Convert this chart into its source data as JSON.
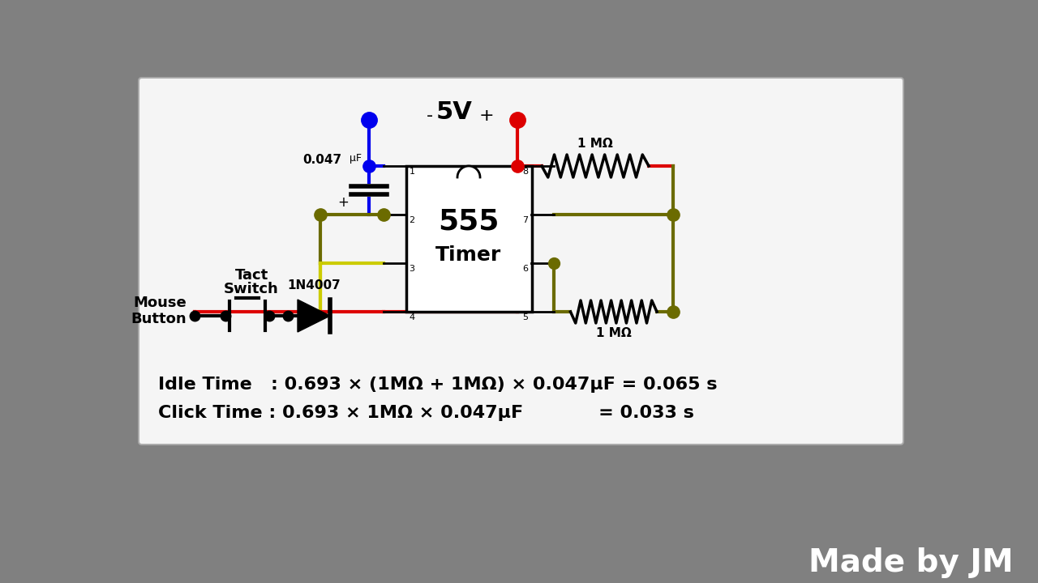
{
  "blue_color": "#0000ee",
  "red_color": "#dd0000",
  "olive_color": "#6b6b00",
  "yellow_color": "#cccc00",
  "black_color": "#000000",
  "white_color": "#ffffff",
  "bg_color": "#888888",
  "formula_idle": "Idle Time   : 0.693 × (1MΩ + 1MΩ) × 0.047μF = 0.065 s",
  "formula_click": "Click Time : 0.693 × 1MΩ × 0.047μF            = 0.033 s",
  "watermark": "Made by JM"
}
